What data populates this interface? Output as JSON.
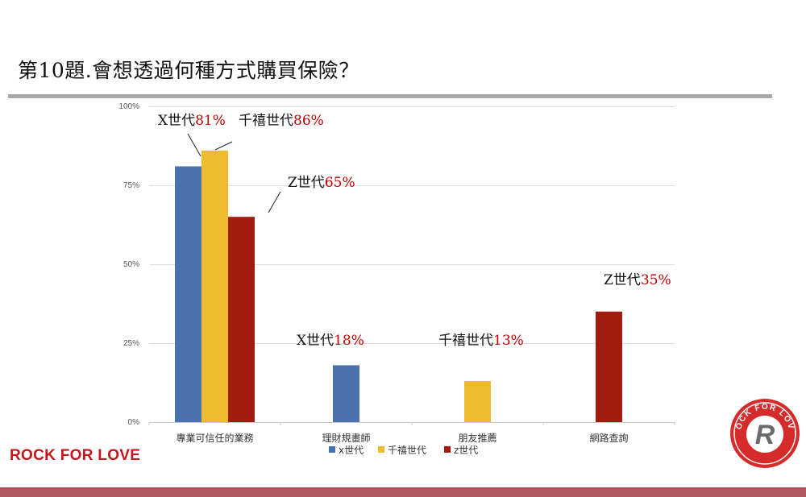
{
  "slide": {
    "title": "第10題.會想透過何種方式購買保險？",
    "brand_text": "ROCK FOR LOVE",
    "logo": {
      "top_text": "ROCK FOR LOVE",
      "bottom_text": "磐石會館",
      "monogram": "R"
    }
  },
  "colors": {
    "x_gen": "#4a72b0",
    "millennial": "#eeba30",
    "z_gen": "#a01c0c",
    "title_rule": "#a9a9a9",
    "bottom_bar": "#b05a5f",
    "brand_red": "#c4161c",
    "annotation_value_red": "#c00000"
  },
  "chart_data": {
    "type": "bar",
    "categories": [
      "專業可信任的業務",
      "理財規畫師",
      "朋友推薦",
      "網路查詢"
    ],
    "series": [
      {
        "name": "x世代",
        "color": "#4a72b0",
        "values": [
          81,
          18,
          null,
          null
        ]
      },
      {
        "name": "千禧世代",
        "color": "#eeba30",
        "values": [
          86,
          null,
          13,
          null
        ]
      },
      {
        "name": "z世代",
        "color": "#a01c0c",
        "values": [
          65,
          null,
          null,
          35
        ]
      }
    ],
    "ylim": [
      0,
      100
    ],
    "yticks": [
      0,
      25,
      50,
      75,
      100
    ],
    "ytick_labels": [
      "0%",
      "25%",
      "50%",
      "75%",
      "100%"
    ],
    "grid": true,
    "legend": "bottom",
    "annotations": [
      {
        "label": "X世代",
        "value": "81%"
      },
      {
        "label": "千禧世代",
        "value": "86%"
      },
      {
        "label": "Z世代",
        "value": "65%"
      },
      {
        "label": "X世代",
        "value": "18%"
      },
      {
        "label": "千禧世代",
        "value": "13%"
      },
      {
        "label": "Z世代",
        "value": "35%"
      }
    ]
  }
}
